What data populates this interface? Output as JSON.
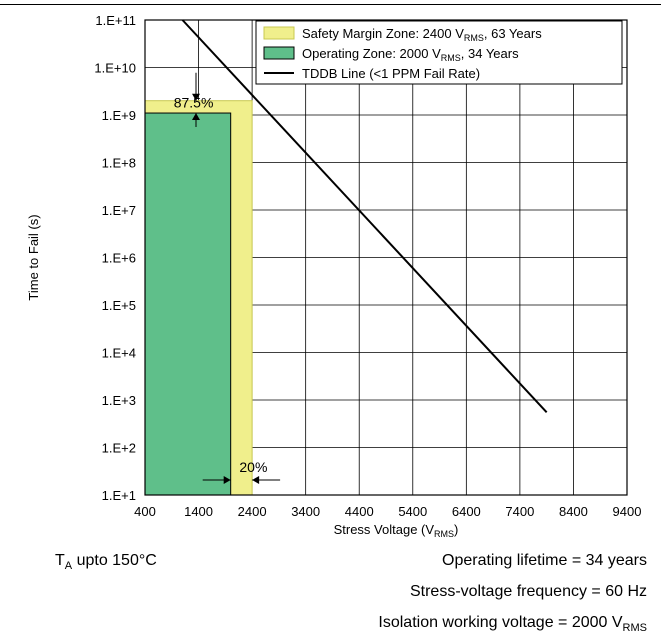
{
  "chart_data": {
    "type": "line",
    "xlabel": "Stress Voltage (V",
    "xlabel_sub": "RMS",
    "xlabel_end": ")",
    "ylabel": "Time to Fail (s)",
    "x_scale": "linear",
    "y_scale": "log",
    "xlim": [
      400,
      9400
    ],
    "ylim": [
      10,
      100000000000
    ],
    "grid": true,
    "x_ticks": [
      {
        "value": 400,
        "label": "400"
      },
      {
        "value": 1400,
        "label": "1400"
      },
      {
        "value": 2400,
        "label": "2400"
      },
      {
        "value": 3400,
        "label": "3400"
      },
      {
        "value": 4400,
        "label": "4400"
      },
      {
        "value": 5400,
        "label": "5400"
      },
      {
        "value": 6400,
        "label": "6400"
      },
      {
        "value": 7400,
        "label": "7400"
      },
      {
        "value": 8400,
        "label": "8400"
      },
      {
        "value": 9400,
        "label": "9400"
      }
    ],
    "y_ticks": [
      {
        "value": 10,
        "label": "1.E+1"
      },
      {
        "value": 100,
        "label": "1.E+2"
      },
      {
        "value": 1000,
        "label": "1.E+3"
      },
      {
        "value": 10000,
        "label": "1.E+4"
      },
      {
        "value": 100000,
        "label": "1.E+5"
      },
      {
        "value": 1000000,
        "label": "1.E+6"
      },
      {
        "value": 10000000,
        "label": "1.E+7"
      },
      {
        "value": 100000000,
        "label": "1.E+8"
      },
      {
        "value": 1000000000,
        "label": "1.E+9"
      },
      {
        "value": 10000000000,
        "label": "1.E+10"
      },
      {
        "value": 100000000000,
        "label": "1.E+11"
      }
    ],
    "zones": [
      {
        "label_pre": "Safety Margin Zone: 2400 V",
        "label_sub": "RMS",
        "label_post": ", 63 Years",
        "x_max": 2400,
        "y_max": 2000000000,
        "fill": "#f0ef8c",
        "stroke": "#c8c850"
      },
      {
        "label_pre": "Operating Zone: 2000 V",
        "label_sub": "RMS",
        "label_post": ", 34 Years",
        "x_max": 2000,
        "y_max": 1100000000,
        "fill": "#5fbf8a",
        "stroke": "#000000"
      }
    ],
    "series": [
      {
        "name": "TDDB Line (<1 PPM Fail Rate)",
        "color": "#000000",
        "points": [
          {
            "x": 1100,
            "y": 100000000000
          },
          {
            "x": 7900,
            "y": 550
          }
        ]
      }
    ],
    "annotations": [
      {
        "text": "87.5%",
        "x": 1400,
        "y": 1600000000
      },
      {
        "text": "20%",
        "x": 2200,
        "y": 18
      }
    ],
    "legend_position": "top-right"
  },
  "notes": {
    "ta_main": "T",
    "ta_sub": "A",
    "ta_rest": " upto 150°C",
    "lifetime": "Operating lifetime = 34 years",
    "frequency": "Stress-voltage frequency = 60 Hz",
    "isolation_pre": "Isolation working voltage = 2000 V",
    "isolation_sub": "RMS"
  }
}
